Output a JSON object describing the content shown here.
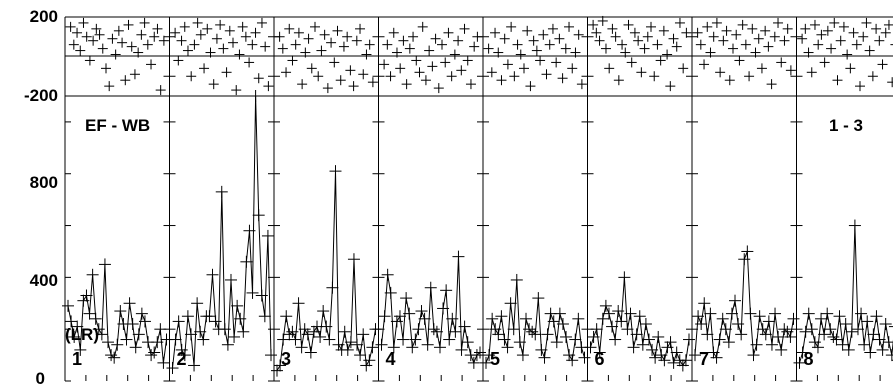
{
  "chart_data": [
    {
      "type": "scatter",
      "panel": "top",
      "ylim": [
        -200,
        200
      ],
      "ytick_labels": [
        "200",
        "-200"
      ],
      "grid": false,
      "note": "phase-like scatter, values estimated",
      "segments": [
        {
          "label": "1",
          "y": [
            150,
            60,
            120,
            30,
            170,
            100,
            -20,
            80,
            140,
            110,
            40,
            -60,
            -150,
            90,
            10,
            130,
            70,
            -120,
            160,
            50,
            -90,
            20,
            110,
            170,
            60,
            -40,
            100,
            140,
            -170,
            80
          ]
        },
        {
          "label": "2",
          "y": [
            120,
            -20,
            80,
            150,
            30,
            -100,
            60,
            170,
            110,
            -60,
            140,
            20,
            -140,
            90,
            160,
            40,
            -80,
            130,
            70,
            -170,
            10,
            150,
            100,
            -30,
            60,
            120,
            -110,
            170,
            50,
            -150
          ]
        },
        {
          "label": "3",
          "y": [
            100,
            40,
            -80,
            140,
            -20,
            60,
            120,
            -140,
            20,
            90,
            -60,
            150,
            -100,
            30,
            110,
            -160,
            70,
            -30,
            130,
            -120,
            50,
            100,
            -70,
            -150,
            80,
            140,
            -90,
            10,
            60,
            -130
          ]
        },
        {
          "label": "4",
          "y": [
            -40,
            60,
            -100,
            120,
            20,
            -60,
            80,
            -140,
            40,
            100,
            -20,
            -80,
            150,
            -120,
            30,
            -50,
            90,
            -160,
            60,
            -30,
            120,
            -100,
            10,
            80,
            -70,
            140,
            -20,
            -140,
            50,
            100
          ]
        },
        {
          "label": "5",
          "y": [
            40,
            -80,
            120,
            20,
            -120,
            90,
            -40,
            150,
            -100,
            60,
            10,
            -60,
            130,
            -150,
            80,
            30,
            -20,
            110,
            -90,
            60,
            140,
            -30,
            90,
            -110,
            40,
            150,
            -60,
            20,
            110,
            -140
          ]
        },
        {
          "label": "6",
          "y": [
            160,
            120,
            80,
            180,
            40,
            -60,
            140,
            100,
            -120,
            60,
            20,
            160,
            -30,
            120,
            80,
            -80,
            40,
            100,
            150,
            -100,
            60,
            -20,
            130,
            10,
            -150,
            90,
            50,
            170,
            -60,
            120
          ]
        },
        {
          "label": "7",
          "y": [
            120,
            60,
            -40,
            150,
            20,
            100,
            170,
            -80,
            80,
            130,
            -120,
            40,
            110,
            -20,
            160,
            60,
            -100,
            140,
            20,
            90,
            -60,
            130,
            50,
            -140,
            100,
            170,
            -30,
            80,
            140,
            -70
          ]
        },
        {
          "label": "8",
          "y": [
            90,
            140,
            20,
            -80,
            160,
            60,
            110,
            -30,
            130,
            40,
            170,
            -120,
            80,
            150,
            10,
            -60,
            120,
            60,
            -150,
            100,
            170,
            30,
            -100,
            140,
            80,
            -40,
            120,
            160,
            -130,
            60
          ]
        }
      ]
    },
    {
      "type": "line",
      "panel": "bottom",
      "ylim": [
        0,
        1100
      ],
      "ytick_labels": [
        "800",
        "400",
        "0"
      ],
      "grid": false,
      "annotations": [
        "EF - WB",
        "1 - 3",
        "(LR)"
      ],
      "note": "values estimated from the plot",
      "segments": [
        {
          "label": "1",
          "y": [
            290,
            230,
            170,
            210,
            120,
            310,
            330,
            260,
            410,
            240,
            200,
            180,
            450,
            150,
            100,
            90,
            140,
            270,
            220,
            160,
            300,
            220,
            130,
            180,
            260,
            230,
            150,
            100,
            110,
            150,
            200,
            70,
            160
          ]
        },
        {
          "label": "2",
          "y": [
            50,
            160,
            230,
            120,
            100,
            250,
            180,
            60,
            300,
            190,
            160,
            250,
            250,
            410,
            230,
            200,
            730,
            200,
            140,
            390,
            170,
            290,
            240,
            190,
            460,
            580,
            340,
            1100,
            640,
            330,
            250,
            560,
            100
          ]
        },
        {
          "label": "3",
          "y": [
            40,
            60,
            160,
            250,
            180,
            190,
            160,
            300,
            130,
            200,
            180,
            110,
            190,
            210,
            170,
            270,
            210,
            160,
            360,
            810,
            140,
            120,
            190,
            120,
            150,
            470,
            140,
            100,
            180,
            60,
            80,
            130,
            200
          ]
        },
        {
          "label": "4",
          "y": [
            140,
            250,
            410,
            340,
            130,
            230,
            250,
            160,
            320,
            260,
            130,
            160,
            200,
            270,
            240,
            140,
            360,
            200,
            190,
            130,
            280,
            350,
            160,
            240,
            190,
            480,
            120,
            210,
            150,
            100,
            70,
            100,
            110
          ]
        },
        {
          "label": "5",
          "y": [
            70,
            100,
            240,
            200,
            180,
            250,
            160,
            130,
            300,
            200,
            390,
            150,
            100,
            240,
            200,
            190,
            180,
            320,
            120,
            90,
            180,
            260,
            230,
            150,
            260,
            220,
            170,
            100,
            80,
            160,
            240,
            130,
            90
          ]
        },
        {
          "label": "6",
          "y": [
            130,
            170,
            200,
            110,
            240,
            290,
            260,
            210,
            160,
            270,
            230,
            400,
            200,
            260,
            130,
            180,
            250,
            140,
            220,
            160,
            120,
            90,
            170,
            100,
            80,
            130,
            150,
            70,
            110,
            80,
            60,
            80,
            160
          ]
        },
        {
          "label": "7",
          "y": [
            100,
            250,
            220,
            300,
            180,
            260,
            110,
            90,
            160,
            240,
            200,
            150,
            260,
            310,
            220,
            180,
            470,
            500,
            260,
            100,
            140,
            250,
            200,
            180,
            230,
            140,
            260,
            170,
            120,
            200,
            190,
            170,
            240
          ]
        },
        {
          "label": "8",
          "y": [
            70,
            110,
            190,
            260,
            200,
            150,
            130,
            240,
            180,
            260,
            200,
            170,
            160,
            250,
            140,
            220,
            120,
            190,
            600,
            200,
            260,
            140,
            230,
            110,
            180,
            250,
            160,
            120,
            220,
            150,
            100,
            210,
            80
          ]
        }
      ]
    }
  ]
}
